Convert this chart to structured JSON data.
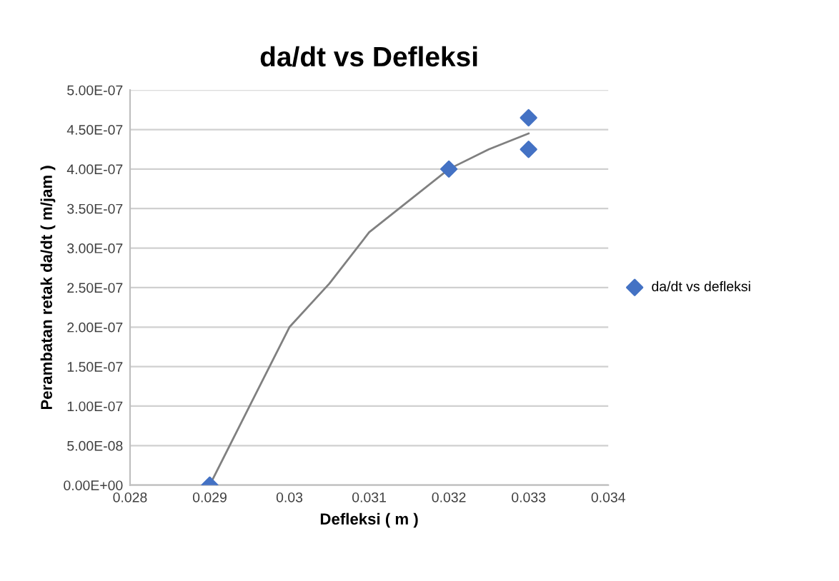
{
  "chart_data": {
    "type": "scatter",
    "title": "da/dt vs Defleksi",
    "xlabel": "Defleksi ( m )",
    "ylabel": "Perambatan retak da/dt ( m/jam )",
    "series": [
      {
        "name": "da/dt vs defleksi",
        "color": "#4472c4",
        "marker": "diamond",
        "x": [
          0.029,
          0.032,
          0.033,
          0.033
        ],
        "values": [
          0,
          4e-07,
          4.65e-07,
          4.25e-07
        ]
      },
      {
        "type": "line",
        "color": "#808080",
        "marker": "none",
        "x": [
          0.029,
          0.0295,
          0.02975,
          0.03,
          0.0305,
          0.031,
          0.0315,
          0.032,
          0.0325,
          0.033
        ],
        "values": [
          0,
          1e-07,
          1.5e-07,
          2e-07,
          2.55e-07,
          3.2e-07,
          3.6e-07,
          4e-07,
          4.25e-07,
          4.45e-07
        ]
      }
    ],
    "xlim": [
      0.028,
      0.034
    ],
    "xticks": [
      0.028,
      0.029,
      0.03,
      0.031,
      0.032,
      0.033,
      0.034
    ],
    "ylim": [
      0,
      5e-07
    ],
    "yticks": [
      {
        "value": 0,
        "label": "0.00E+00"
      },
      {
        "value": 5e-08,
        "label": "5.00E-08"
      },
      {
        "value": 1e-07,
        "label": "1.00E-07"
      },
      {
        "value": 1.5e-07,
        "label": "1.50E-07"
      },
      {
        "value": 2e-07,
        "label": "2.00E-07"
      },
      {
        "value": 2.5e-07,
        "label": "2.50E-07"
      },
      {
        "value": 3e-07,
        "label": "3.00E-07"
      },
      {
        "value": 3.5e-07,
        "label": "3.50E-07"
      },
      {
        "value": 4e-07,
        "label": "4.00E-07"
      },
      {
        "value": 4.5e-07,
        "label": "4.50E-07"
      },
      {
        "value": 5e-07,
        "label": "5.00E-07"
      }
    ],
    "grid": "y",
    "legend": "right"
  }
}
